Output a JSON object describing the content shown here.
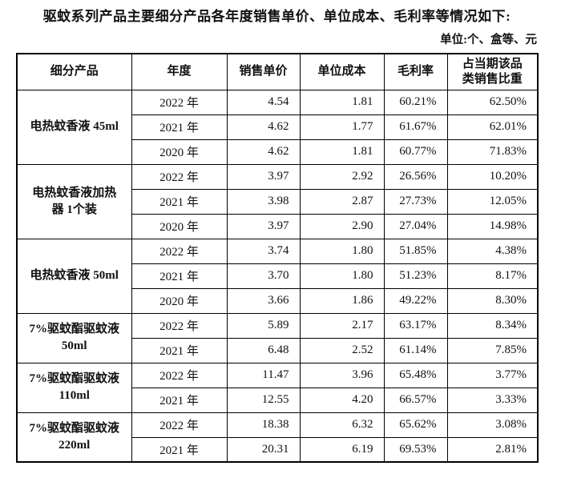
{
  "intro": {
    "text": "驱蚊系列产品主要细分产品各年度销售单价、单位成本、毛利率等情况如下:",
    "unit_note": "单位:个、盒等、元"
  },
  "table": {
    "headers": [
      "细分产品",
      "年度",
      "销售单价",
      "单位成本",
      "毛利率",
      "占当期该品\n类销售比重"
    ],
    "groups": [
      {
        "product": "电热蚊香液 45ml",
        "rows": [
          {
            "year": "2022 年",
            "price": "4.54",
            "cost": "1.81",
            "margin": "60.21%",
            "share": "62.50%"
          },
          {
            "year": "2021 年",
            "price": "4.62",
            "cost": "1.77",
            "margin": "61.67%",
            "share": "62.01%"
          },
          {
            "year": "2020 年",
            "price": "4.62",
            "cost": "1.81",
            "margin": "60.77%",
            "share": "71.83%"
          }
        ]
      },
      {
        "product": "电热蚊香液加热\n器 1个装",
        "rows": [
          {
            "year": "2022 年",
            "price": "3.97",
            "cost": "2.92",
            "margin": "26.56%",
            "share": "10.20%"
          },
          {
            "year": "2021 年",
            "price": "3.98",
            "cost": "2.87",
            "margin": "27.73%",
            "share": "12.05%"
          },
          {
            "year": "2020 年",
            "price": "3.97",
            "cost": "2.90",
            "margin": "27.04%",
            "share": "14.98%"
          }
        ]
      },
      {
        "product": "电热蚊香液 50ml",
        "rows": [
          {
            "year": "2022 年",
            "price": "3.74",
            "cost": "1.80",
            "margin": "51.85%",
            "share": "4.38%"
          },
          {
            "year": "2021 年",
            "price": "3.70",
            "cost": "1.80",
            "margin": "51.23%",
            "share": "8.17%"
          },
          {
            "year": "2020 年",
            "price": "3.66",
            "cost": "1.86",
            "margin": "49.22%",
            "share": "8.30%"
          }
        ]
      },
      {
        "product": "7%驱蚊酯驱蚊液\n50ml",
        "rows": [
          {
            "year": "2022 年",
            "price": "5.89",
            "cost": "2.17",
            "margin": "63.17%",
            "share": "8.34%"
          },
          {
            "year": "2021 年",
            "price": "6.48",
            "cost": "2.52",
            "margin": "61.14%",
            "share": "7.85%"
          }
        ]
      },
      {
        "product": "7%驱蚊酯驱蚊液\n110ml",
        "rows": [
          {
            "year": "2022 年",
            "price": "11.47",
            "cost": "3.96",
            "margin": "65.48%",
            "share": "3.77%"
          },
          {
            "year": "2021 年",
            "price": "12.55",
            "cost": "4.20",
            "margin": "66.57%",
            "share": "3.33%"
          }
        ]
      },
      {
        "product": "7%驱蚊酯驱蚊液\n220ml",
        "rows": [
          {
            "year": "2022 年",
            "price": "18.38",
            "cost": "6.32",
            "margin": "65.62%",
            "share": "3.08%"
          },
          {
            "year": "2021 年",
            "price": "20.31",
            "cost": "6.19",
            "margin": "69.53%",
            "share": "2.81%"
          }
        ]
      }
    ]
  }
}
